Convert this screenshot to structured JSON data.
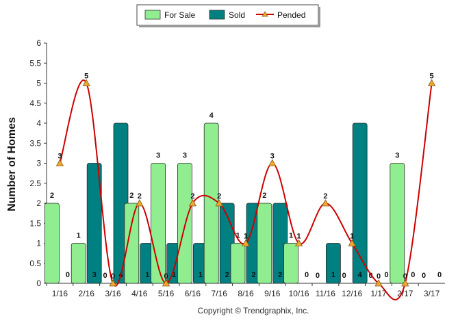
{
  "chart_data": {
    "type": "bar",
    "ylabel": "Number of Homes",
    "ylim": [
      0,
      6
    ],
    "yticks": [
      "0",
      "0.5",
      "1",
      "1.5",
      "2",
      "2.5",
      "3",
      "3.5",
      "4",
      "4.5",
      "5",
      "5.5",
      "6"
    ],
    "categories": [
      "1/16",
      "2/16",
      "3/16",
      "4/16",
      "5/16",
      "6/16",
      "7/16",
      "8/16",
      "9/16",
      "10/16",
      "11/16",
      "12/16",
      "1/17",
      "2/17",
      "3/17"
    ],
    "series": [
      {
        "name": "For Sale",
        "kind": "bar",
        "color": "#90EE90",
        "values": [
          2,
          1,
          0,
          2,
          3,
          3,
          4,
          1,
          2,
          1,
          0,
          0,
          0,
          3,
          0
        ]
      },
      {
        "name": "Sold",
        "kind": "bar",
        "color": "#008080",
        "values": [
          0,
          3,
          4,
          1,
          1,
          1,
          2,
          2,
          2,
          0,
          1,
          4,
          0,
          0,
          0
        ]
      },
      {
        "name": "Pended",
        "kind": "line",
        "color": "#CC0000",
        "marker_color": "#F0A830",
        "values": [
          3,
          5,
          0,
          2,
          0,
          2,
          2,
          1,
          3,
          1,
          2,
          1,
          0,
          0,
          5
        ]
      }
    ],
    "legend": "top-center",
    "copyright": "Copyright © Trendgraphix, Inc."
  }
}
